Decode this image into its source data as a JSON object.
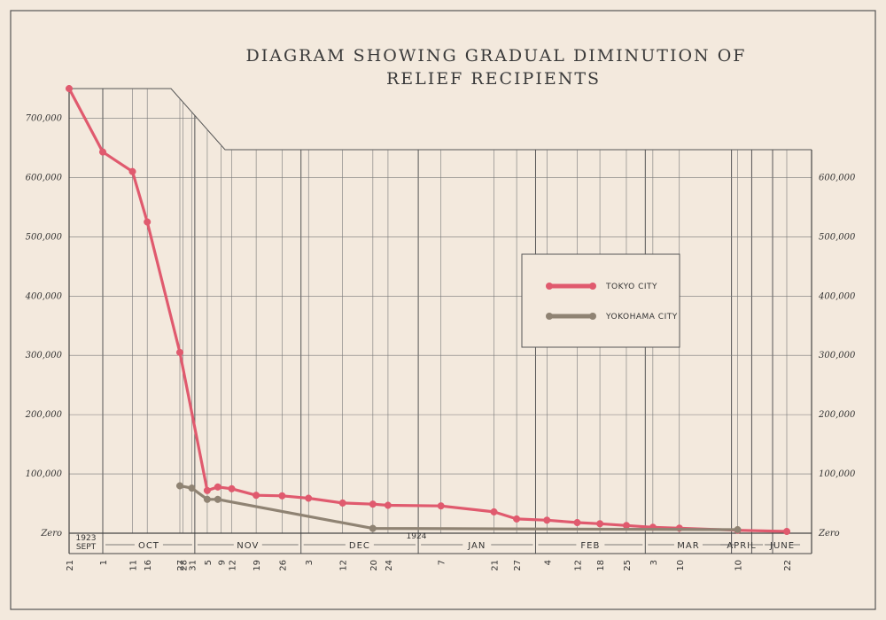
{
  "chart_data": {
    "type": "line",
    "title": "DIAGRAM SHOWING GRADUAL DIMINUTION OF RELIEF RECIPIENTS",
    "title_lines": [
      "DIAGRAM SHOWING GRADUAL DIMINUTION OF",
      "RELIEF RECIPIENTS"
    ],
    "y_ticks": [
      "100,000",
      "200,000",
      "300,000",
      "400,000",
      "500,000",
      "600,000",
      "700,000"
    ],
    "y_ticks_right": [
      "100,000",
      "200,000",
      "300,000",
      "400,000",
      "500,000",
      "600,000"
    ],
    "y_zero_label": "Zero",
    "ylim": [
      0,
      750000
    ],
    "year_labels": [
      "1923",
      "1924"
    ],
    "months": [
      "SEPT",
      "OCT",
      "NOV",
      "DEC",
      "JAN",
      "FEB",
      "MAR",
      "APRIL",
      "JUNE"
    ],
    "day_labels": [
      "21",
      "1",
      "11",
      "16",
      "27",
      "28",
      "31",
      "5",
      "9",
      "12",
      "19",
      "26",
      "3",
      "12",
      "20",
      "24",
      "7",
      "21",
      "27",
      "4",
      "12",
      "18",
      "25",
      "3",
      "10",
      "10",
      "22"
    ],
    "legend_placement": "center-right",
    "series": [
      {
        "name": "TOKYO CITY",
        "color": "#e05a6e",
        "points": [
          {
            "date": "1923-09-21",
            "value": 750000
          },
          {
            "date": "1923-10-01",
            "value": 643000
          },
          {
            "date": "1923-10-11",
            "value": 610000
          },
          {
            "date": "1923-10-16",
            "value": 525000
          },
          {
            "date": "1923-10-27",
            "value": 305000
          },
          {
            "date": "1923-11-05",
            "value": 72000
          },
          {
            "date": "1923-11-08",
            "value": 78000
          },
          {
            "date": "1923-11-12",
            "value": 75000
          },
          {
            "date": "1923-11-19",
            "value": 64000
          },
          {
            "date": "1923-11-26",
            "value": 63000
          },
          {
            "date": "1923-12-03",
            "value": 59000
          },
          {
            "date": "1923-12-12",
            "value": 51000
          },
          {
            "date": "1923-12-20",
            "value": 49000
          },
          {
            "date": "1923-12-24",
            "value": 47000
          },
          {
            "date": "1924-01-07",
            "value": 46000
          },
          {
            "date": "1924-01-21",
            "value": 36000
          },
          {
            "date": "1924-01-27",
            "value": 24000
          },
          {
            "date": "1924-02-04",
            "value": 22000
          },
          {
            "date": "1924-02-12",
            "value": 18000
          },
          {
            "date": "1924-02-18",
            "value": 16000
          },
          {
            "date": "1924-02-25",
            "value": 13000
          },
          {
            "date": "1924-03-03",
            "value": 10000
          },
          {
            "date": "1924-03-10",
            "value": 8500
          },
          {
            "date": "1924-04-10",
            "value": 5000
          },
          {
            "date": "1924-06-22",
            "value": 3000
          }
        ]
      },
      {
        "name": "YOKOHAMA CITY",
        "color": "#8f8373",
        "points": [
          {
            "date": "1923-10-27",
            "value": 80000
          },
          {
            "date": "1923-10-31",
            "value": 76000
          },
          {
            "date": "1923-11-05",
            "value": 57000
          },
          {
            "date": "1923-11-08",
            "value": 57000
          },
          {
            "date": "1923-12-20",
            "value": 8000
          },
          {
            "date": "1924-04-10",
            "value": 6000
          }
        ]
      }
    ]
  }
}
